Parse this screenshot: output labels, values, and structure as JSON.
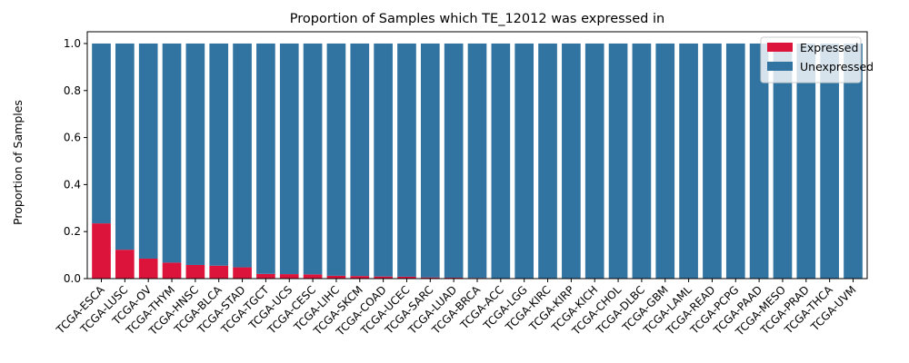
{
  "chart_data": {
    "type": "bar",
    "stacked": true,
    "title": "Proportion of Samples which TE_12012 was expressed in",
    "xlabel": "",
    "ylabel": "Proportion of Samples",
    "ylim": [
      0,
      1.05
    ],
    "yticks": [
      0.0,
      0.2,
      0.4,
      0.6,
      0.8,
      1.0
    ],
    "ytick_labels": [
      "0.0",
      "0.2",
      "0.4",
      "0.6",
      "0.8",
      "1.0"
    ],
    "grid": false,
    "legend_position": "top-right",
    "categories": [
      "TCGA-ESCA",
      "TCGA-LUSC",
      "TCGA-OV",
      "TCGA-THYM",
      "TCGA-HNSC",
      "TCGA-BLCA",
      "TCGA-STAD",
      "TCGA-TGCT",
      "TCGA-UCS",
      "TCGA-CESC",
      "TCGA-LIHC",
      "TCGA-SKCM",
      "TCGA-COAD",
      "TCGA-UCEC",
      "TCGA-SARC",
      "TCGA-LUAD",
      "TCGA-BRCA",
      "TCGA-ACC",
      "TCGA-LGG",
      "TCGA-KIRC",
      "TCGA-KIRP",
      "TCGA-KICH",
      "TCGA-CHOL",
      "TCGA-DLBC",
      "TCGA-GBM",
      "TCGA-LAML",
      "TCGA-READ",
      "TCGA-PCPG",
      "TCGA-PAAD",
      "TCGA-MESO",
      "TCGA-PRAD",
      "TCGA-THCA",
      "TCGA-UVM"
    ],
    "series": [
      {
        "name": "Expressed",
        "color": "#dc143c",
        "values": [
          0.235,
          0.123,
          0.085,
          0.068,
          0.058,
          0.055,
          0.048,
          0.02,
          0.019,
          0.018,
          0.012,
          0.011,
          0.009,
          0.008,
          0.005,
          0.004,
          0.003,
          0,
          0,
          0,
          0,
          0,
          0,
          0,
          0,
          0,
          0,
          0,
          0,
          0,
          0,
          0,
          0
        ]
      },
      {
        "name": "Unexpressed",
        "color": "#3274a1",
        "values": [
          0.765,
          0.877,
          0.915,
          0.932,
          0.942,
          0.945,
          0.952,
          0.98,
          0.981,
          0.982,
          0.988,
          0.989,
          0.991,
          0.992,
          0.995,
          0.996,
          0.997,
          1,
          1,
          1,
          1,
          1,
          1,
          1,
          1,
          1,
          1,
          1,
          1,
          1,
          1,
          1,
          1
        ]
      }
    ]
  }
}
